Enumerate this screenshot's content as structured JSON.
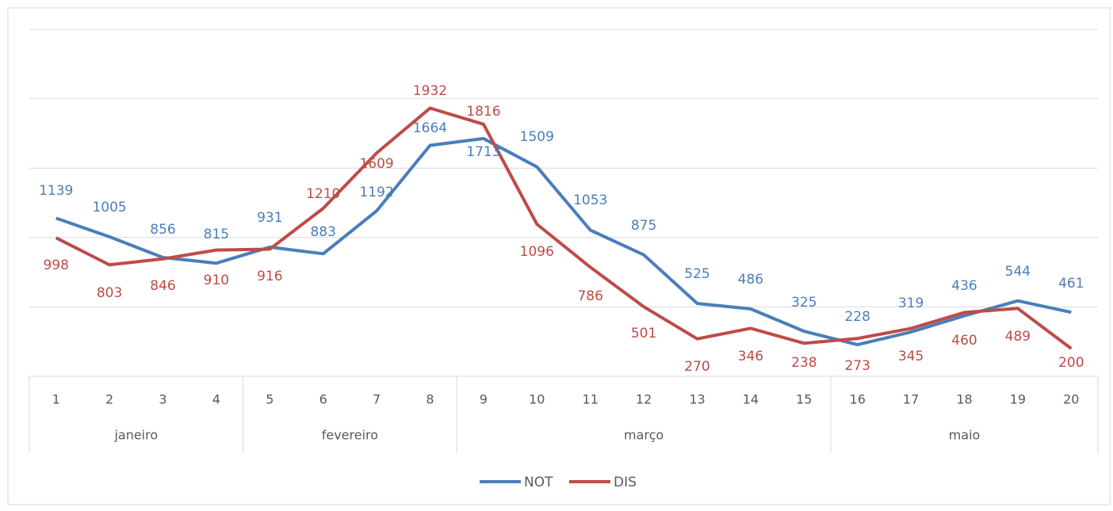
{
  "chart_data": {
    "type": "line",
    "categories": [
      "1",
      "2",
      "3",
      "4",
      "5",
      "6",
      "7",
      "8",
      "9",
      "10",
      "11",
      "12",
      "13",
      "14",
      "15",
      "16",
      "17",
      "18",
      "19",
      "20"
    ],
    "groups": [
      {
        "label": "janeiro",
        "count": 4
      },
      {
        "label": "fevereiro",
        "count": 4
      },
      {
        "label": "março",
        "count": 7
      },
      {
        "label": "maio",
        "count": 5
      }
    ],
    "series": [
      {
        "name": "NOT",
        "color": "#4a7ebb",
        "values": [
          1139,
          1005,
          856,
          815,
          931,
          883,
          1192,
          1664,
          1713,
          1509,
          1053,
          875,
          525,
          486,
          325,
          228,
          319,
          436,
          544,
          461
        ]
      },
      {
        "name": "DIS",
        "color": "#be4b48",
        "values": [
          998,
          803,
          846,
          910,
          916,
          1210,
          1609,
          1932,
          1816,
          1096,
          786,
          501,
          270,
          346,
          238,
          273,
          345,
          460,
          489,
          200
        ]
      }
    ],
    "ylim": [
      0,
      2500
    ],
    "yticks": [
      0,
      500,
      1000,
      1500,
      2000,
      2500
    ],
    "grid": true,
    "legend": "bottom"
  }
}
